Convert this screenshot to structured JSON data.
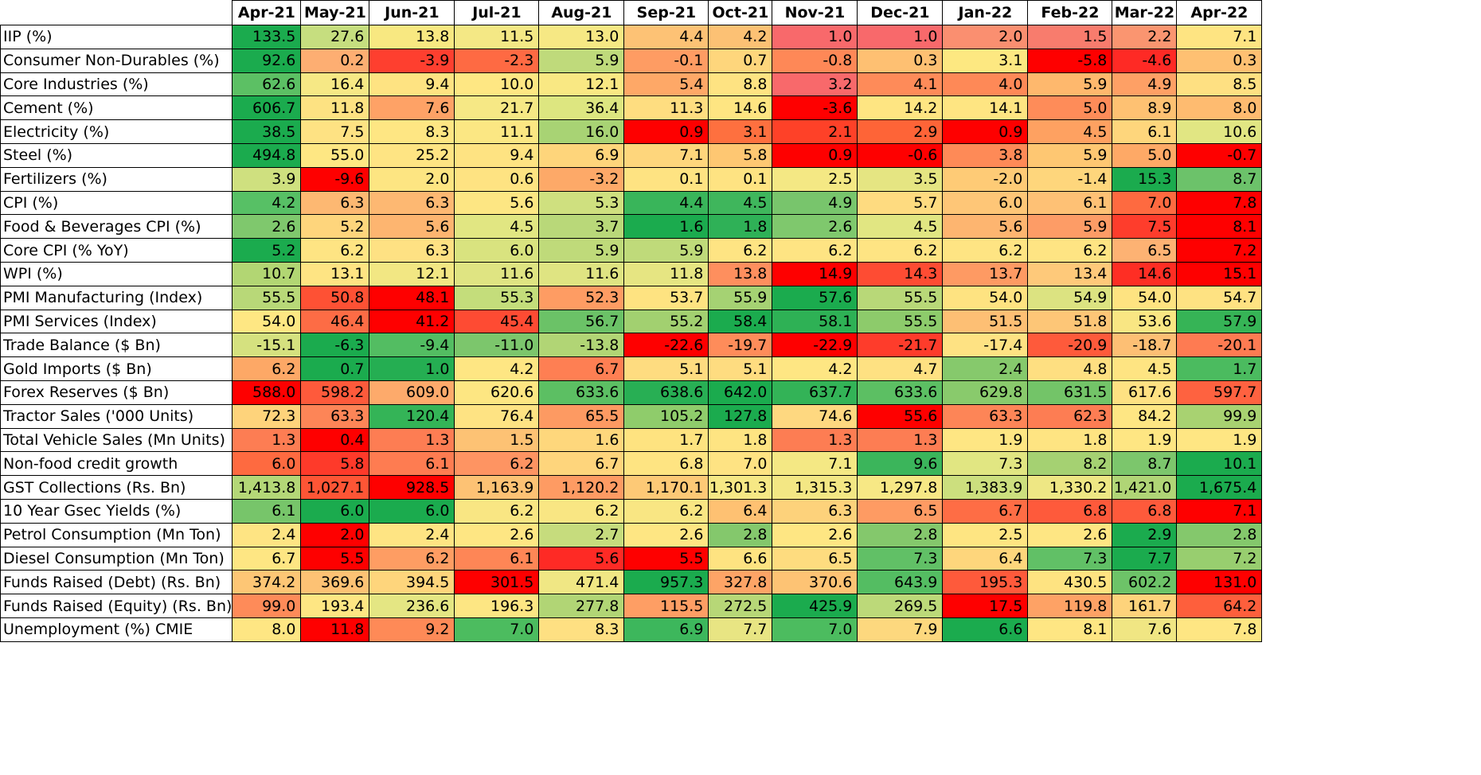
{
  "chart_data": {
    "type": "heatmap",
    "columns": [
      "Apr-21",
      "May-21",
      "Jun-21",
      "Jul-21",
      "Aug-21",
      "Sep-21",
      "Oct-21",
      "Nov-21",
      "Dec-21",
      "Jan-22",
      "Feb-22",
      "Mar-22",
      "Apr-22"
    ],
    "rows": [
      {
        "label": "IIP (%)",
        "values": [
          "133.5",
          "27.6",
          "13.8",
          "11.5",
          "13.0",
          "4.4",
          "4.2",
          "1.0",
          "1.0",
          "2.0",
          "1.5",
          "2.2",
          "7.1"
        ],
        "colors": [
          "#1bab4e",
          "#c6de7f",
          "#f8e881",
          "#f4e885",
          "#f6e884",
          "#fdc275",
          "#fcc174",
          "#f8696b",
          "#f8696b",
          "#fa8f70",
          "#f87c6d",
          "#fa9570",
          "#fee482"
        ]
      },
      {
        "label": "Consumer Non-Durables (%)",
        "values": [
          "92.6",
          "0.2",
          "-3.9",
          "-2.3",
          "5.9",
          "-0.1",
          "0.7",
          "-0.8",
          "0.3",
          "3.1",
          "-5.8",
          "-4.6",
          "0.3"
        ],
        "colors": [
          "#1bab4e",
          "#fdae72",
          "#fe3f2f",
          "#fe6a43",
          "#bfda7b",
          "#fe9c63",
          "#fed67c",
          "#fe8857",
          "#fec072",
          "#fde881",
          "#fe0000",
          "#fe2a25",
          "#fec072"
        ]
      },
      {
        "label": "Core Industries (%)",
        "values": [
          "62.6",
          "16.4",
          "9.4",
          "10.0",
          "12.1",
          "5.4",
          "8.8",
          "3.2",
          "4.1",
          "4.0",
          "5.9",
          "4.9",
          "8.5"
        ],
        "colors": [
          "#5cc064",
          "#f6e885",
          "#fee382",
          "#fee783",
          "#f9e883",
          "#fea867",
          "#fee382",
          "#f8696b",
          "#fe8b59",
          "#fe8957",
          "#feb86d",
          "#fea065",
          "#fee082"
        ]
      },
      {
        "label": "Cement (%)",
        "values": [
          "606.7",
          "11.8",
          "7.6",
          "21.7",
          "36.4",
          "11.3",
          "14.6",
          "-3.6",
          "14.2",
          "14.1",
          "5.0",
          "8.9",
          "8.0"
        ],
        "colors": [
          "#1bab4e",
          "#fde282",
          "#fea266",
          "#f6e885",
          "#dde680",
          "#fedd80",
          "#fee582",
          "#fe0000",
          "#fee582",
          "#fee582",
          "#fe8c59",
          "#fec172",
          "#febb70"
        ]
      },
      {
        "label": "Electricity (%)",
        "values": [
          "38.5",
          "7.5",
          "8.3",
          "11.1",
          "16.0",
          "0.9",
          "3.1",
          "2.1",
          "2.9",
          "0.9",
          "4.5",
          "6.1",
          "10.6"
        ],
        "colors": [
          "#1bab4e",
          "#fee283",
          "#fee683",
          "#fbe783",
          "#a8d374",
          "#fe0000",
          "#fe703f",
          "#fe4128",
          "#fe6437",
          "#fe0000",
          "#fea161",
          "#fed67c",
          "#e1e683"
        ]
      },
      {
        "label": "Steel (%)",
        "values": [
          "494.8",
          "55.0",
          "25.2",
          "9.4",
          "6.9",
          "7.1",
          "5.8",
          "0.9",
          "-0.6",
          "3.8",
          "5.9",
          "5.0",
          "-0.7"
        ],
        "colors": [
          "#1bab4e",
          "#fee783",
          "#fee483",
          "#fee382",
          "#fed57b",
          "#fed67c",
          "#fec772",
          "#fe0000",
          "#fe0000",
          "#fe8a57",
          "#fec772",
          "#fea966",
          "#fe0000"
        ]
      },
      {
        "label": "Fertilizers (%)",
        "values": [
          "3.9",
          "-9.6",
          "2.0",
          "0.6",
          "-3.2",
          "0.1",
          "0.1",
          "2.5",
          "3.5",
          "-2.0",
          "-1.4",
          "15.3",
          "8.7"
        ],
        "colors": [
          "#cfe07f",
          "#fe0000",
          "#fde582",
          "#fee382",
          "#fda968",
          "#fee382",
          "#fee382",
          "#f4e884",
          "#e5e582",
          "#fecb76",
          "#fed67c",
          "#1bab4e",
          "#6cc26a"
        ]
      },
      {
        "label": "CPI (%)",
        "values": [
          "4.2",
          "6.3",
          "6.3",
          "5.6",
          "5.3",
          "4.4",
          "4.5",
          "4.9",
          "5.7",
          "6.0",
          "6.1",
          "7.0",
          "7.8"
        ],
        "colors": [
          "#57c065",
          "#fdb872",
          "#fdb872",
          "#fde683",
          "#cfe07f",
          "#39b55a",
          "#3fb65c",
          "#78c56c",
          "#fedb80",
          "#fec677",
          "#fec175",
          "#fe6a40",
          "#fe0000"
        ]
      },
      {
        "label": "Food & Beverages CPI (%)",
        "values": [
          "2.6",
          "5.2",
          "5.6",
          "4.5",
          "3.7",
          "1.6",
          "1.8",
          "2.6",
          "4.5",
          "5.6",
          "5.9",
          "7.5",
          "8.1"
        ],
        "colors": [
          "#7fc86d",
          "#fed57c",
          "#fdb570",
          "#e1e682",
          "#b9d879",
          "#1bab4e",
          "#2fb157",
          "#7fc86d",
          "#e1e682",
          "#fdb570",
          "#fd9c66",
          "#fe3d2c",
          "#fe0000"
        ]
      },
      {
        "label": "Core CPI (% YoY)",
        "values": [
          "5.2",
          "6.2",
          "6.3",
          "6.0",
          "5.9",
          "5.9",
          "6.2",
          "6.2",
          "6.2",
          "6.2",
          "6.2",
          "6.5",
          "7.2"
        ],
        "colors": [
          "#1bab4e",
          "#fee483",
          "#fee183",
          "#d9e37f",
          "#bfda7a",
          "#bfda7a",
          "#fee483",
          "#fee483",
          "#fee483",
          "#fee483",
          "#fee483",
          "#fdb273",
          "#fe0000"
        ]
      },
      {
        "label": "WPI (%)",
        "values": [
          "10.7",
          "13.1",
          "12.1",
          "11.6",
          "11.6",
          "11.8",
          "13.8",
          "14.9",
          "14.3",
          "13.7",
          "13.4",
          "14.6",
          "15.1"
        ],
        "colors": [
          "#b2d673",
          "#fee483",
          "#f2e783",
          "#dfe482",
          "#dfe482",
          "#e6e582",
          "#fe8f5e",
          "#fe0000",
          "#fe4c33",
          "#fe9a63",
          "#fec97a",
          "#fe2e24",
          "#fe0000"
        ]
      },
      {
        "label": "PMI Manufacturing (Index)",
        "values": [
          "55.5",
          "50.8",
          "48.1",
          "55.3",
          "52.3",
          "53.7",
          "55.9",
          "57.6",
          "55.5",
          "54.0",
          "54.9",
          "54.0",
          "54.7"
        ],
        "colors": [
          "#b8d878",
          "#fe5134",
          "#fe0000",
          "#c4dd7b",
          "#fe9c63",
          "#fee381",
          "#a5d273",
          "#1bab4e",
          "#b8d878",
          "#fee381",
          "#dce381",
          "#fee381",
          "#fee282"
        ]
      },
      {
        "label": "PMI Services (Index)",
        "values": [
          "54.0",
          "46.4",
          "41.2",
          "45.4",
          "56.7",
          "55.2",
          "58.4",
          "58.1",
          "55.5",
          "51.5",
          "51.8",
          "53.6",
          "57.9"
        ],
        "colors": [
          "#fee783",
          "#fd6c45",
          "#fe0000",
          "#fe4b33",
          "#6bc267",
          "#a2d070",
          "#1bab4e",
          "#2eb155",
          "#8dcb6b",
          "#fdbf74",
          "#fdc677",
          "#f9e683",
          "#36b456"
        ]
      },
      {
        "label": "Trade Balance ($ Bn)",
        "values": [
          "-15.1",
          "-6.3",
          "-9.4",
          "-11.0",
          "-13.8",
          "-22.6",
          "-19.7",
          "-22.9",
          "-21.7",
          "-17.4",
          "-20.9",
          "-18.7",
          "-20.1"
        ],
        "colors": [
          "#d5e17f",
          "#1bab4e",
          "#53bd62",
          "#7cc66c",
          "#b1d575",
          "#fe0000",
          "#fe8c5a",
          "#fe0000",
          "#fe3c2b",
          "#fee283",
          "#fe5a3b",
          "#fdbf74",
          "#fe7b52"
        ]
      },
      {
        "label": "Gold Imports ($ Bn)",
        "values": [
          "6.2",
          "0.7",
          "1.0",
          "4.2",
          "6.7",
          "5.1",
          "5.1",
          "4.2",
          "4.7",
          "2.4",
          "4.8",
          "4.5",
          "1.7"
        ],
        "colors": [
          "#fda866",
          "#1bab4e",
          "#25ae52",
          "#fee683",
          "#fe7f53",
          "#fedc80",
          "#fedc80",
          "#fee683",
          "#fee182",
          "#86c96c",
          "#fedf81",
          "#fee482",
          "#4bbb5f"
        ]
      },
      {
        "label": "Forex Reserves ($ Bn)",
        "values": [
          "588.0",
          "598.2",
          "609.0",
          "620.6",
          "633.6",
          "638.6",
          "642.0",
          "637.7",
          "633.6",
          "629.8",
          "631.5",
          "617.6",
          "597.7"
        ],
        "colors": [
          "#fe0000",
          "#fe5a3b",
          "#fdaa6b",
          "#fde682",
          "#5cbf63",
          "#28af54",
          "#1bab4e",
          "#33b357",
          "#5cbf63",
          "#89ca6c",
          "#73c468",
          "#fee182",
          "#fe6240"
        ]
      },
      {
        "label": "Tractor Sales ('000 Units)",
        "values": [
          "72.3",
          "63.3",
          "120.4",
          "76.4",
          "65.5",
          "105.2",
          "127.8",
          "74.6",
          "55.6",
          "63.3",
          "62.3",
          "84.2",
          "99.9"
        ],
        "colors": [
          "#fed37b",
          "#fd8557",
          "#34b457",
          "#fee383",
          "#fd9a62",
          "#8fcc6b",
          "#1bab4e",
          "#fed880",
          "#fe0000",
          "#fd8557",
          "#fd7d53",
          "#fee683",
          "#a8d271"
        ]
      },
      {
        "label": "Total Vehicle Sales (Mn Units)",
        "values": [
          "1.3",
          "0.4",
          "1.3",
          "1.5",
          "1.6",
          "1.7",
          "1.8",
          "1.3",
          "1.3",
          "1.9",
          "1.8",
          "1.9",
          "1.9"
        ],
        "colors": [
          "#fd7d53",
          "#fe0000",
          "#fd7d53",
          "#fdc274",
          "#fed77c",
          "#fee380",
          "#fee482",
          "#fd7d53",
          "#fd7d53",
          "#fee683",
          "#fee482",
          "#fee683",
          "#fee683"
        ]
      },
      {
        "label": "Non-food credit growth",
        "values": [
          "6.0",
          "5.8",
          "6.1",
          "6.2",
          "6.7",
          "6.8",
          "7.0",
          "7.1",
          "9.6",
          "7.3",
          "8.2",
          "8.7",
          "10.1"
        ],
        "colors": [
          "#fe6a40",
          "#fe3a2a",
          "#fe7c51",
          "#fe9462",
          "#fed57c",
          "#fee482",
          "#fee383",
          "#f4e884",
          "#3bb55b",
          "#e1e682",
          "#a5d172",
          "#7cc66c",
          "#1bab4e"
        ]
      },
      {
        "label": "GST Collections (Rs. Bn)",
        "values": [
          "1,413.8",
          "1,027.1",
          "928.5",
          "1,163.9",
          "1,120.2",
          "1,170.1",
          "1,301.3",
          "1,315.3",
          "1,297.8",
          "1,383.9",
          "1,330.2",
          "1,421.0",
          "1,675.4"
        ],
        "colors": [
          "#b4d777",
          "#fe5535",
          "#fe0000",
          "#fdc274",
          "#fe9b63",
          "#fdc976",
          "#f6e885",
          "#f3e784",
          "#f7e885",
          "#ccdf7e",
          "#eee784",
          "#b0d576",
          "#1bab4e"
        ]
      },
      {
        "label": "10 Year Gsec Yields (%)",
        "values": [
          "6.1",
          "6.0",
          "6.0",
          "6.2",
          "6.2",
          "6.2",
          "6.4",
          "6.3",
          "6.5",
          "6.7",
          "6.8",
          "6.8",
          "7.1"
        ],
        "colors": [
          "#77c56a",
          "#1bab4e",
          "#1bab4e",
          "#f9e683",
          "#f9e683",
          "#f9e683",
          "#fec172",
          "#fdd27b",
          "#fe9b63",
          "#fe6d45",
          "#fe5a3b",
          "#fe5a3b",
          "#fe0000"
        ]
      },
      {
        "label": "Petrol Consumption (Mn Ton)",
        "values": [
          "2.4",
          "2.0",
          "2.4",
          "2.6",
          "2.7",
          "2.6",
          "2.8",
          "2.6",
          "2.8",
          "2.5",
          "2.6",
          "2.9",
          "2.8"
        ],
        "colors": [
          "#fee483",
          "#fe0000",
          "#fee483",
          "#fee683",
          "#c6dc7d",
          "#fee683",
          "#84c86c",
          "#fee683",
          "#84c86c",
          "#fee582",
          "#fee683",
          "#1bab4e",
          "#84c86c"
        ]
      },
      {
        "label": "Diesel Consumption (Mn Ton)",
        "values": [
          "6.7",
          "5.5",
          "6.2",
          "6.1",
          "5.6",
          "5.5",
          "6.6",
          "6.5",
          "7.3",
          "6.4",
          "7.3",
          "7.7",
          "7.2"
        ],
        "colors": [
          "#fee683",
          "#fe0000",
          "#fe9d63",
          "#fe8656",
          "#fe2a25",
          "#fe0000",
          "#fee381",
          "#fedc7f",
          "#61c066",
          "#fed67c",
          "#61c066",
          "#1bab4e",
          "#98ce6f"
        ]
      },
      {
        "label": "Funds Raised (Debt) (Rs. Bn)",
        "values": [
          "374.2",
          "369.6",
          "394.5",
          "301.5",
          "471.4",
          "957.3",
          "327.8",
          "370.6",
          "643.9",
          "195.3",
          "430.5",
          "602.2",
          "131.0"
        ],
        "colors": [
          "#fdc675",
          "#fdc274",
          "#fed57c",
          "#fe0000",
          "#f0e784",
          "#1bab4e",
          "#fda466",
          "#fdc374",
          "#54bd62",
          "#fe5a3b",
          "#fee381",
          "#6dc368",
          "#fe0000"
        ]
      },
      {
        "label": "Funds Raised (Equity) (Rs. Bn)",
        "values": [
          "99.0",
          "193.4",
          "236.6",
          "196.3",
          "277.8",
          "115.5",
          "272.5",
          "425.9",
          "269.5",
          "17.5",
          "119.8",
          "161.7",
          "64.2"
        ],
        "colors": [
          "#fe8b59",
          "#fee683",
          "#e4e683",
          "#fde683",
          "#b1d575",
          "#fe9e64",
          "#b7d777",
          "#1bab4e",
          "#bcd979",
          "#fe0000",
          "#fea265",
          "#fed37b",
          "#fe5f3c"
        ]
      },
      {
        "label": "Unemployment (%) CMIE",
        "values": [
          "8.0",
          "11.8",
          "9.2",
          "7.0",
          "8.3",
          "6.9",
          "7.7",
          "7.0",
          "7.9",
          "6.6",
          "8.1",
          "7.6",
          "7.8"
        ],
        "colors": [
          "#fee683",
          "#fe0000",
          "#fe8a57",
          "#4cbc5f",
          "#fee082",
          "#3db75c",
          "#e8e583",
          "#4cbc5f",
          "#fdd87e",
          "#1bab4e",
          "#fee683",
          "#f0e683",
          "#fee683"
        ]
      }
    ]
  }
}
